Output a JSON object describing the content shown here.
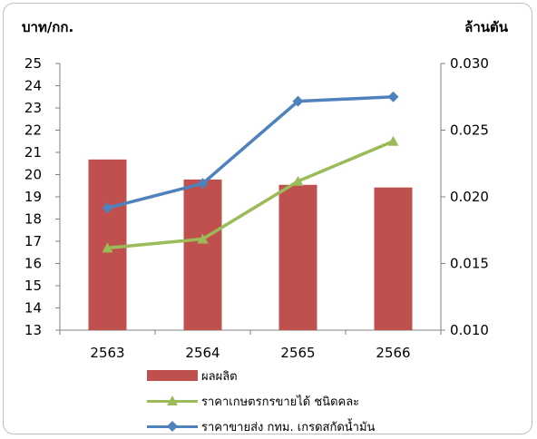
{
  "chart_data": {
    "type": "bar",
    "left_unit": "บาท/กก.",
    "right_unit": "ล้านตัน",
    "categories": [
      "2563",
      "2564",
      "2565",
      "2566"
    ],
    "y_left": {
      "range": [
        13,
        25
      ],
      "ticks": [
        "13",
        "14",
        "15",
        "16",
        "17",
        "18",
        "19",
        "20",
        "21",
        "22",
        "23",
        "24",
        "25"
      ]
    },
    "y_right": {
      "range": [
        0.01,
        0.03
      ],
      "ticks": [
        "0.010",
        "0.015",
        "0.020",
        "0.025",
        "0.030"
      ]
    },
    "series": [
      {
        "name": "ผลผลิต",
        "type": "bar",
        "axis": "right",
        "color": "#c0504d",
        "values": [
          0.0228,
          0.0213,
          0.0209,
          0.0207
        ]
      },
      {
        "name": "ราคาเกษตรกรขายได้ ชนิดคละ",
        "type": "line",
        "axis": "left",
        "marker": "triangle",
        "color": "#9bbb59",
        "values": [
          16.7,
          17.1,
          19.7,
          21.5
        ]
      },
      {
        "name": "ราคาขายส่ง กทม. เกรดสกัดน้ำมัน",
        "type": "line",
        "axis": "left",
        "marker": "diamond",
        "color": "#4f81bd",
        "values": [
          18.5,
          19.6,
          23.3,
          23.5
        ]
      }
    ],
    "grid": false,
    "legend_position": "bottom"
  }
}
